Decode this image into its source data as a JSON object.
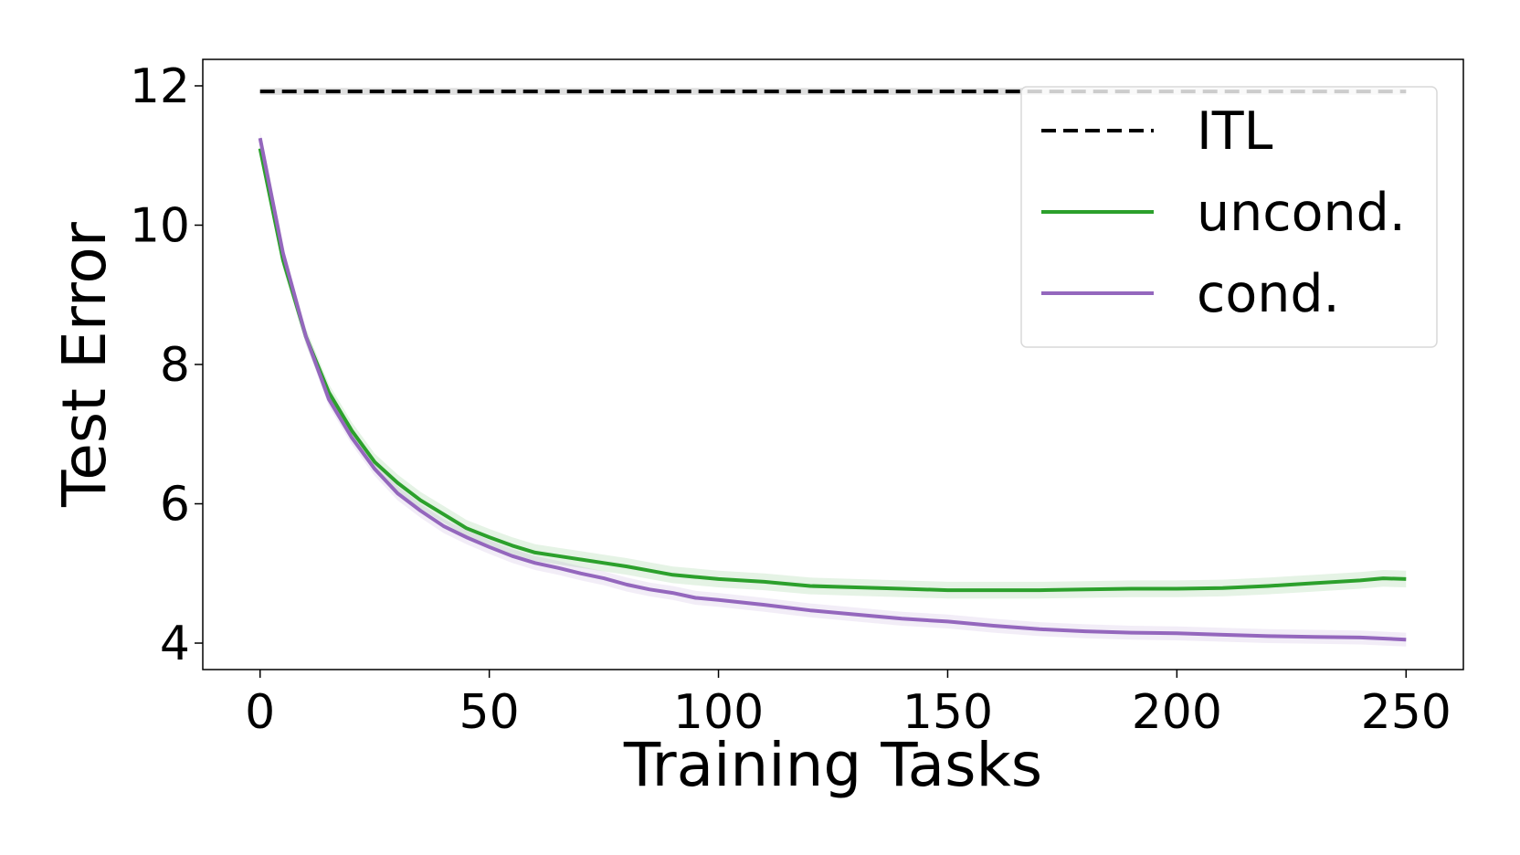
{
  "chart_data": {
    "type": "line",
    "title": "",
    "xlabel": "Training Tasks",
    "ylabel": "Test Error",
    "xlim": [
      -12.5,
      262.5
    ],
    "ylim": [
      3.62,
      12.38
    ],
    "xticks": [
      "0",
      "50",
      "100",
      "150",
      "200",
      "250"
    ],
    "yticks": [
      "4",
      "6",
      "8",
      "10",
      "12"
    ],
    "grid": false,
    "legend_position": "top-right",
    "series": [
      {
        "name": "ITL",
        "style": "dashed",
        "color": "#000000",
        "x": [
          0,
          250
        ],
        "y": [
          11.92,
          11.92
        ],
        "band": 0.05
      },
      {
        "name": "uncond.",
        "style": "solid",
        "color": "#2ca02c",
        "band": 0.12,
        "x": [
          0,
          5,
          10,
          15,
          20,
          25,
          30,
          35,
          40,
          45,
          50,
          55,
          60,
          65,
          70,
          75,
          80,
          85,
          90,
          95,
          100,
          110,
          120,
          130,
          140,
          150,
          160,
          170,
          180,
          190,
          200,
          210,
          220,
          230,
          240,
          245,
          250
        ],
        "y": [
          11.1,
          9.5,
          8.4,
          7.6,
          7.05,
          6.6,
          6.3,
          6.05,
          5.85,
          5.65,
          5.52,
          5.4,
          5.3,
          5.25,
          5.2,
          5.15,
          5.1,
          5.04,
          4.98,
          4.95,
          4.92,
          4.88,
          4.82,
          4.8,
          4.78,
          4.76,
          4.76,
          4.76,
          4.77,
          4.78,
          4.78,
          4.79,
          4.82,
          4.86,
          4.9,
          4.93,
          4.92
        ]
      },
      {
        "name": "cond.",
        "style": "solid",
        "color": "#9467bd",
        "band": 0.1,
        "x": [
          0,
          5,
          10,
          15,
          20,
          25,
          30,
          35,
          40,
          45,
          50,
          55,
          60,
          65,
          70,
          75,
          80,
          85,
          90,
          95,
          100,
          110,
          120,
          130,
          140,
          150,
          160,
          170,
          180,
          190,
          200,
          210,
          220,
          230,
          240,
          250
        ],
        "y": [
          11.25,
          9.6,
          8.4,
          7.5,
          6.95,
          6.5,
          6.15,
          5.9,
          5.68,
          5.52,
          5.38,
          5.25,
          5.15,
          5.08,
          5.0,
          4.93,
          4.84,
          4.77,
          4.72,
          4.65,
          4.62,
          4.55,
          4.47,
          4.41,
          4.35,
          4.31,
          4.25,
          4.2,
          4.17,
          4.15,
          4.14,
          4.12,
          4.1,
          4.09,
          4.08,
          4.05
        ]
      }
    ]
  }
}
